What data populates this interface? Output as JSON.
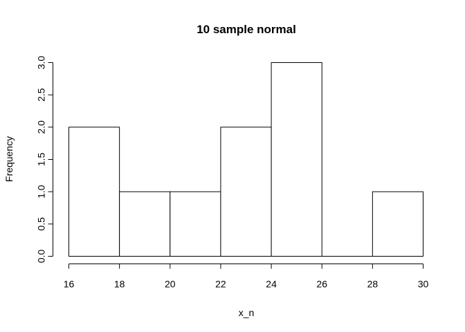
{
  "chart_data": {
    "type": "bar",
    "title": "10 sample normal",
    "xlabel": "x_n",
    "ylabel": "Frequency",
    "bins": [
      {
        "start": 16,
        "end": 18,
        "count": 2
      },
      {
        "start": 18,
        "end": 20,
        "count": 1
      },
      {
        "start": 20,
        "end": 22,
        "count": 1
      },
      {
        "start": 22,
        "end": 24,
        "count": 2
      },
      {
        "start": 24,
        "end": 26,
        "count": 3
      },
      {
        "start": 26,
        "end": 28,
        "count": 0
      },
      {
        "start": 28,
        "end": 30,
        "count": 1
      }
    ],
    "xlim": [
      16,
      30
    ],
    "ylim": [
      0,
      3
    ],
    "x_ticks": [
      {
        "value": 16,
        "label": "16"
      },
      {
        "value": 18,
        "label": "18"
      },
      {
        "value": 20,
        "label": "20"
      },
      {
        "value": 22,
        "label": "22"
      },
      {
        "value": 24,
        "label": "24"
      },
      {
        "value": 26,
        "label": "26"
      },
      {
        "value": 28,
        "label": "28"
      },
      {
        "value": 30,
        "label": "30"
      }
    ],
    "y_ticks": [
      {
        "value": 0,
        "label": "0.0"
      },
      {
        "value": 0.5,
        "label": "0.5"
      },
      {
        "value": 1,
        "label": "1.0"
      },
      {
        "value": 1.5,
        "label": "1.5"
      },
      {
        "value": 2,
        "label": "2.0"
      },
      {
        "value": 2.5,
        "label": "2.5"
      },
      {
        "value": 3,
        "label": "3.0"
      }
    ],
    "grid": false,
    "legend": "none",
    "colors": {
      "bar_fill": "#ffffff",
      "bar_stroke": "#000000"
    }
  }
}
